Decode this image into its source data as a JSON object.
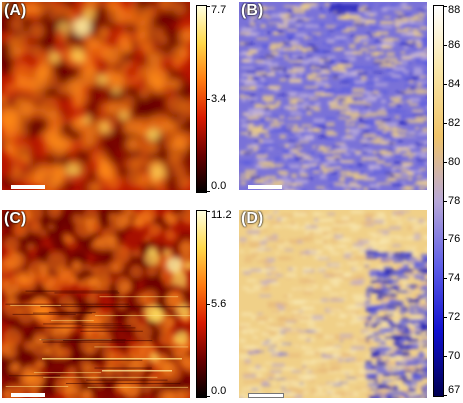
{
  "panels": [
    {
      "id": "A",
      "label": "(A)",
      "type": "height",
      "scalebar_style": "solid"
    },
    {
      "id": "B",
      "label": "(B)",
      "type": "potential",
      "scalebar_style": "solid"
    },
    {
      "id": "C",
      "label": "(C)",
      "type": "height",
      "scalebar_style": "solid"
    },
    {
      "id": "D",
      "label": "(D)",
      "type": "potential",
      "scalebar_style": "outlined"
    }
  ],
  "colorbars": {
    "top_height": {
      "ticks": [
        "7.7",
        "3.4",
        "0.0"
      ],
      "colors": [
        "#ffffe0",
        "#ffd84a",
        "#ff7a10",
        "#d81a00",
        "#6a0000",
        "#000000"
      ]
    },
    "bottom_height": {
      "ticks": [
        "11.2",
        "5.6",
        "0.0"
      ],
      "colors": [
        "#ffffe0",
        "#ffd84a",
        "#ff7a10",
        "#d81a00",
        "#6a0000",
        "#000000"
      ]
    },
    "potential": {
      "ticks": [
        "88",
        "86",
        "84",
        "82",
        "80",
        "78",
        "76",
        "74",
        "72",
        "70",
        "67"
      ],
      "colors": [
        "#ffffff",
        "#f9e6a8",
        "#f0c46a",
        "#b8a8d8",
        "#5e5ee8",
        "#1010d0",
        "#000050"
      ]
    }
  },
  "palettes": {
    "heat_dark": "#6a0000",
    "heat_mid": "#d81a00",
    "heat_light": "#ff8a18",
    "heat_highlight": "#ffe060",
    "pot_blue": "#5a5ae0",
    "pot_light": "#c8b8d8",
    "pot_yellow": "#f2d080",
    "pot_dark_blue": "#1818b8"
  }
}
